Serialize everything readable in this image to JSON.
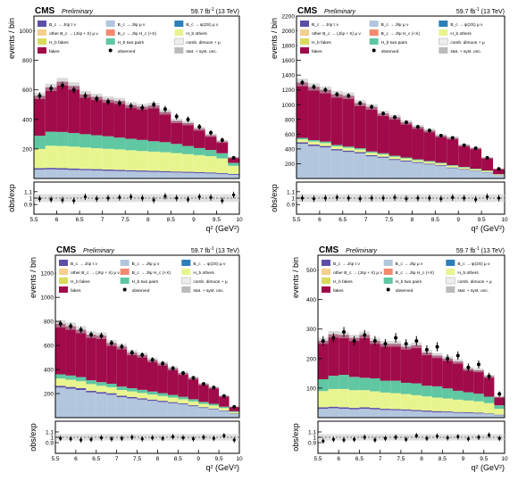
{
  "header": {
    "experiment": "CMS",
    "status": "Preliminary",
    "lumi": "59.7 fb",
    "lumi_sup": "-1",
    "energy": "(13 TeV)"
  },
  "legend": [
    {
      "label": "B_c → J/ψ τ ν",
      "color": "#5b4fa7"
    },
    {
      "label": "B_c → J/ψ μ ν",
      "color": "#b2c6dd"
    },
    {
      "label": "B_c → ψ(2S) μ ν",
      "color": "#2c7fb8"
    },
    {
      "label": "other B_c → (J/ψ + X) μ ν",
      "color": "#f4cf8e"
    },
    {
      "label": "B_c → J/ψ H_c (+X)",
      "color": "#f58a6f"
    },
    {
      "label": "H_b others",
      "color": "#e8f58f"
    },
    {
      "label": "H_b fakes",
      "color": "#d9db5a"
    },
    {
      "label": "H_b two pairs",
      "color": "#5fc7a1"
    },
    {
      "label": "comb. dimuon + μ",
      "color": "#eeeeee"
    },
    {
      "label": "fakes",
      "color": "#a10b4a"
    },
    {
      "label": "observed",
      "color": "#000000"
    },
    {
      "label": "stat. + syst. unc.",
      "color": "#bbbbbb"
    }
  ],
  "axes": {
    "ylabel": "events / bin",
    "ratio_ylabel": "obs/exp",
    "xlabel": "q² (GeV²)"
  },
  "chart_data": [
    {
      "type": "bar",
      "stacked": true,
      "x_edges": [
        5.5,
        5.75,
        6.0,
        6.25,
        6.5,
        6.75,
        7.0,
        7.25,
        7.5,
        7.75,
        8.0,
        8.25,
        8.5,
        8.75,
        9.0,
        9.25,
        9.5,
        9.75,
        10.0
      ],
      "xlim": [
        5.5,
        10.0
      ],
      "ylim": [
        0,
        1100
      ],
      "yticks": [
        200,
        400,
        600,
        800,
        1000
      ],
      "xticks": [
        5.5,
        6,
        6.5,
        7,
        7.5,
        8,
        8.5,
        9,
        9.5,
        10
      ],
      "series": [
        {
          "name": "B_c → J/ψ μ ν",
          "values": [
            60,
            62,
            60,
            58,
            56,
            54,
            52,
            50,
            48,
            46,
            44,
            42,
            40,
            38,
            36,
            34,
            30,
            25
          ]
        },
        {
          "name": "B_c → J/ψ τ ν",
          "values": [
            10,
            10,
            10,
            10,
            9,
            9,
            9,
            9,
            8,
            8,
            8,
            8,
            7,
            7,
            7,
            7,
            6,
            6
          ]
        },
        {
          "name": "H_b others",
          "values": [
            130,
            150,
            150,
            148,
            145,
            142,
            140,
            138,
            135,
            132,
            130,
            128,
            125,
            120,
            115,
            110,
            100,
            55
          ]
        },
        {
          "name": "H_b two pairs",
          "values": [
            90,
            95,
            95,
            92,
            90,
            88,
            85,
            80,
            78,
            75,
            70,
            68,
            62,
            55,
            48,
            42,
            35,
            20
          ]
        },
        {
          "name": "fakes",
          "values": [
            270,
            300,
            340,
            318,
            270,
            260,
            248,
            248,
            228,
            225,
            242,
            204,
            156,
            155,
            131,
            100,
            80,
            36
          ]
        }
      ],
      "observed": [
        560,
        610,
        630,
        600,
        560,
        540,
        520,
        510,
        490,
        480,
        500,
        470,
        420,
        400,
        350,
        310,
        260,
        140
      ],
      "ratio": {
        "ylim": [
          0.75,
          1.25
        ],
        "yticks": [
          0.9,
          1,
          1.1
        ],
        "values": [
          0.99,
          0.98,
          0.97,
          0.96,
          1.02,
          0.99,
          1.0,
          1.01,
          1.02,
          1.0,
          0.97,
          1.03,
          1.0,
          0.98,
          1.02,
          1.01,
          0.96,
          1.05
        ]
      }
    },
    {
      "type": "bar",
      "stacked": true,
      "x_edges": [
        5.5,
        5.75,
        6.0,
        6.25,
        6.5,
        6.75,
        7.0,
        7.25,
        7.5,
        7.75,
        8.0,
        8.25,
        8.5,
        8.75,
        9.0,
        9.25,
        9.5,
        9.75,
        10.0
      ],
      "xlim": [
        5.5,
        10.0
      ],
      "ylim": [
        0,
        2200
      ],
      "yticks": [
        200,
        400,
        600,
        800,
        1000,
        1200,
        1400,
        1600,
        1800,
        2000,
        2200
      ],
      "xticks": [
        5.5,
        6,
        6.5,
        7,
        7.5,
        8,
        8.5,
        9,
        9.5,
        10
      ],
      "series": [
        {
          "name": "B_c → J/ψ μ ν",
          "values": [
            470,
            440,
            420,
            380,
            360,
            340,
            300,
            280,
            250,
            230,
            210,
            190,
            170,
            140,
            120,
            100,
            80,
            40
          ]
        },
        {
          "name": "B_c → J/ψ τ ν",
          "values": [
            20,
            20,
            20,
            18,
            18,
            17,
            16,
            15,
            14,
            13,
            12,
            11,
            10,
            9,
            8,
            7,
            6,
            4
          ]
        },
        {
          "name": "H_b others",
          "values": [
            40,
            40,
            40,
            38,
            36,
            35,
            34,
            32,
            30,
            28,
            26,
            25,
            24,
            22,
            20,
            18,
            16,
            10
          ]
        },
        {
          "name": "H_b two pairs",
          "values": [
            20,
            20,
            20,
            18,
            18,
            17,
            16,
            15,
            14,
            13,
            12,
            11,
            10,
            9,
            8,
            7,
            6,
            4
          ]
        },
        {
          "name": "fakes",
          "values": [
            750,
            720,
            700,
            686,
            688,
            611,
            604,
            538,
            522,
            476,
            440,
            413,
            366,
            370,
            294,
            278,
            172,
            72
          ]
        }
      ],
      "observed": [
        1300,
        1240,
        1200,
        1140,
        1120,
        1020,
        970,
        880,
        830,
        760,
        700,
        650,
        580,
        550,
        450,
        410,
        280,
        130
      ],
      "ratio": {
        "ylim": [
          0.75,
          1.25
        ],
        "yticks": [
          0.9,
          1,
          1.1
        ],
        "values": [
          1.0,
          0.99,
          1.0,
          1.01,
          1.0,
          0.99,
          1.0,
          1.0,
          1.01,
          0.99,
          1.0,
          1.0,
          0.99,
          1.01,
          1.0,
          0.98,
          1.02,
          1.0
        ]
      }
    },
    {
      "type": "bar",
      "stacked": true,
      "x_edges": [
        5.5,
        5.75,
        6.0,
        6.25,
        6.5,
        6.75,
        7.0,
        7.25,
        7.5,
        7.75,
        8.0,
        8.25,
        8.5,
        8.75,
        9.0,
        9.25,
        9.5,
        9.75,
        10.0
      ],
      "xlim": [
        5.5,
        10.0
      ],
      "ylim": [
        0,
        1350
      ],
      "yticks": [
        200,
        400,
        600,
        800,
        1000,
        1200
      ],
      "xticks": [
        5.5,
        6,
        6.5,
        7,
        7.5,
        8,
        8.5,
        9,
        9.5,
        10
      ],
      "series": [
        {
          "name": "B_c → J/ψ μ ν",
          "values": [
            250,
            240,
            230,
            210,
            200,
            190,
            170,
            160,
            150,
            140,
            130,
            120,
            110,
            95,
            80,
            70,
            55,
            30
          ]
        },
        {
          "name": "B_c → J/ψ τ ν",
          "values": [
            15,
            15,
            15,
            14,
            13,
            13,
            12,
            12,
            11,
            10,
            10,
            9,
            8,
            8,
            7,
            6,
            5,
            4
          ]
        },
        {
          "name": "H_b others",
          "values": [
            60,
            60,
            58,
            55,
            52,
            50,
            48,
            46,
            44,
            42,
            40,
            38,
            35,
            32,
            28,
            25,
            20,
            12
          ]
        },
        {
          "name": "H_b two pairs",
          "values": [
            35,
            35,
            34,
            32,
            30,
            29,
            28,
            27,
            26,
            25,
            24,
            22,
            20,
            18,
            16,
            14,
            11,
            7
          ]
        },
        {
          "name": "fakes",
          "values": [
            420,
            410,
            393,
            379,
            385,
            338,
            332,
            295,
            289,
            263,
            246,
            221,
            197,
            177,
            149,
            135,
            89,
            37
          ]
        }
      ],
      "observed": [
        780,
        760,
        730,
        690,
        680,
        620,
        590,
        540,
        520,
        480,
        450,
        410,
        370,
        330,
        280,
        250,
        180,
        90
      ],
      "ratio": {
        "ylim": [
          0.7,
          1.3
        ],
        "yticks": [
          0.9,
          1,
          1.1
        ],
        "values": [
          0.98,
          0.97,
          0.95,
          0.96,
          0.99,
          0.97,
          0.98,
          1.0,
          0.97,
          0.99,
          0.98,
          1.01,
          0.99,
          0.97,
          1.0,
          0.98,
          1.03,
          0.95
        ]
      }
    },
    {
      "type": "bar",
      "stacked": true,
      "x_edges": [
        5.5,
        5.75,
        6.0,
        6.25,
        6.5,
        6.75,
        7.0,
        7.25,
        7.5,
        7.75,
        8.0,
        8.25,
        8.5,
        8.75,
        9.0,
        9.25,
        9.5,
        9.75,
        10.0
      ],
      "xlim": [
        5.5,
        10.0
      ],
      "ylim": [
        0,
        550
      ],
      "yticks": [
        100,
        200,
        300,
        400,
        500
      ],
      "xticks": [
        5.5,
        6,
        6.5,
        7,
        7.5,
        8,
        8.5,
        9,
        9.5,
        10
      ],
      "series": [
        {
          "name": "B_c → J/ψ μ ν",
          "values": [
            30,
            32,
            30,
            28,
            30,
            28,
            26,
            25,
            24,
            22,
            20,
            18,
            18,
            16,
            15,
            14,
            12,
            8
          ]
        },
        {
          "name": "B_c → J/ψ τ ν",
          "values": [
            5,
            5,
            5,
            5,
            5,
            5,
            4,
            4,
            4,
            4,
            4,
            4,
            3,
            3,
            3,
            3,
            2,
            2
          ]
        },
        {
          "name": "H_b others",
          "values": [
            55,
            60,
            62,
            60,
            58,
            56,
            55,
            54,
            52,
            50,
            48,
            46,
            44,
            42,
            40,
            38,
            35,
            20
          ]
        },
        {
          "name": "H_b two pairs",
          "values": [
            40,
            45,
            48,
            45,
            42,
            44,
            40,
            42,
            38,
            40,
            36,
            38,
            34,
            30,
            28,
            26,
            22,
            12
          ]
        },
        {
          "name": "fakes",
          "values": [
            130,
            140,
            135,
            132,
            145,
            127,
            125,
            125,
            122,
            129,
            112,
            104,
            101,
            99,
            79,
            79,
            69,
            28
          ]
        }
      ],
      "observed": [
        260,
        270,
        290,
        260,
        280,
        260,
        250,
        270,
        250,
        260,
        230,
        240,
        200,
        210,
        170,
        180,
        140,
        80
      ],
      "ratio": {
        "ylim": [
          0.7,
          1.3
        ],
        "yticks": [
          0.9,
          1,
          1.1
        ],
        "values": [
          0.93,
          0.96,
          0.95,
          0.96,
          1.0,
          0.95,
          0.98,
          1.0,
          0.96,
          1.03,
          0.98,
          1.02,
          0.99,
          1.01,
          0.97,
          1.0,
          1.04,
          0.98
        ]
      }
    }
  ]
}
